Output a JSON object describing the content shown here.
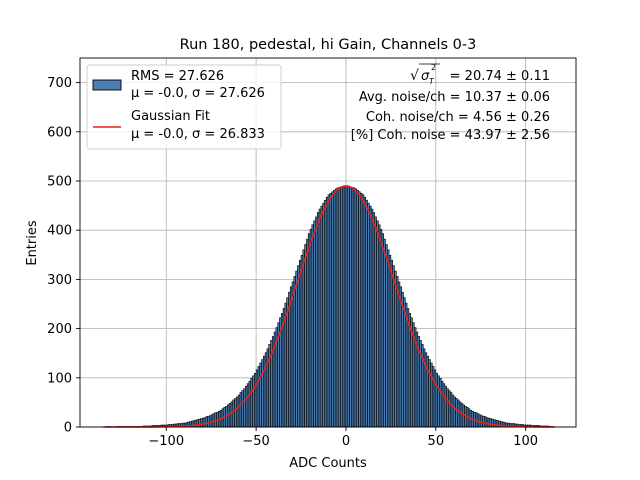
{
  "chart_data": {
    "type": "bar",
    "title": "Run 180, pedestal, hi Gain, Channels 0-3",
    "xlabel": "ADC Counts",
    "ylabel": "Entries",
    "xlim": [
      -148,
      128
    ],
    "ylim": [
      0,
      750
    ],
    "xticks": [
      -100,
      -50,
      0,
      50,
      100
    ],
    "xtick_labels": [
      "−100",
      "−50",
      "0",
      "50",
      "100"
    ],
    "yticks": [
      0,
      100,
      200,
      300,
      400,
      500,
      600,
      700
    ],
    "grid": true,
    "legend_position": "top-left",
    "histogram": {
      "name": "RMS = 27.626",
      "name_line2": "μ = -0.0, σ = 27.626",
      "bin_width": 1,
      "mean": 0.0,
      "sigma": 27.626,
      "entries_per_bin": [
        [
          -133,
          1
        ],
        [
          -130,
          0
        ],
        [
          -125,
          1
        ],
        [
          -120,
          1
        ],
        [
          -115,
          1
        ],
        [
          -110,
          2
        ],
        [
          -105,
          3
        ],
        [
          -100,
          4
        ],
        [
          -95,
          6
        ],
        [
          -90,
          8
        ],
        [
          -85,
          12
        ],
        [
          -80,
          17
        ],
        [
          -75,
          24
        ],
        [
          -70,
          33
        ],
        [
          -65,
          46
        ],
        [
          -60,
          63
        ],
        [
          -55,
          85
        ],
        [
          -50,
          112
        ],
        [
          -45,
          147
        ],
        [
          -40,
          188
        ],
        [
          -35,
          236
        ],
        [
          -30,
          290
        ],
        [
          -25,
          344
        ],
        [
          -20,
          398
        ],
        [
          -15,
          440
        ],
        [
          -10,
          470
        ],
        [
          -5,
          485
        ],
        [
          0,
          490
        ],
        [
          5,
          485
        ],
        [
          10,
          470
        ],
        [
          15,
          440
        ],
        [
          20,
          398
        ],
        [
          25,
          344
        ],
        [
          30,
          290
        ],
        [
          35,
          236
        ],
        [
          40,
          188
        ],
        [
          45,
          147
        ],
        [
          50,
          112
        ],
        [
          55,
          85
        ],
        [
          60,
          63
        ],
        [
          65,
          46
        ],
        [
          70,
          33
        ],
        [
          75,
          24
        ],
        [
          80,
          17
        ],
        [
          85,
          12
        ],
        [
          90,
          8
        ],
        [
          95,
          6
        ],
        [
          100,
          4
        ],
        [
          105,
          3
        ],
        [
          110,
          2
        ],
        [
          115,
          1
        ]
      ],
      "color": "#4b7db2",
      "edgecolor": "#000000"
    },
    "fit": {
      "name": "Gaussian Fit",
      "name_line2": "μ = -0.0, σ = 26.833",
      "mu": 0.0,
      "sigma": 26.833,
      "amplitude": 490,
      "x_range": [
        -135,
        116
      ],
      "color": "#e8211a"
    },
    "annotations": [
      "= 20.74 ± 0.11",
      "Avg. noise/ch = 10.37 ± 0.06",
      "Coh. noise/ch = 4.56 ± 0.26",
      "[%] Coh. noise = 43.97 ± 2.56"
    ],
    "annotation_sqrt_symbol": "σ",
    "annotation_sqrt_sub": "T",
    "annotation_sqrt_sup": "2"
  }
}
